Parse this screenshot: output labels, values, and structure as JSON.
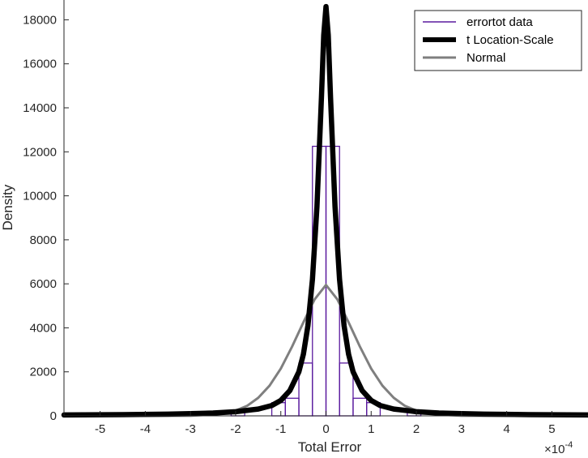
{
  "chart_data": {
    "type": "bar",
    "xlabel": "Total Error",
    "ylabel": "Density",
    "x_exponent_label": "×10",
    "x_exponent_power": "-4",
    "xlim": [
      -5.8,
      5.8
    ],
    "ylim": [
      0,
      18900
    ],
    "x_ticks": [
      -5,
      -4,
      -3,
      -2,
      -1,
      0,
      1,
      2,
      3,
      4,
      5
    ],
    "y_ticks": [
      0,
      2000,
      4000,
      6000,
      8000,
      10000,
      12000,
      14000,
      16000,
      18000
    ],
    "grid": false,
    "legend_position": "top-right",
    "legend": [
      {
        "label": "errortot data",
        "color": "#5a1a9e",
        "style": "thin"
      },
      {
        "label": "t Location-Scale",
        "color": "#000000",
        "style": "thick"
      },
      {
        "label": "Normal",
        "color": "#7f7f7f",
        "style": "medium"
      }
    ],
    "histogram": {
      "name": "errortot data",
      "color": "#5a1a9e",
      "bin_edges": [
        -3.6,
        -3.3,
        -2.1,
        -1.8,
        -1.2,
        -0.9,
        -0.6,
        -0.3,
        0,
        0.3,
        0.6,
        0.9,
        1.2,
        1.8,
        2.1,
        3.3,
        3.6
      ],
      "densities": [
        100,
        0,
        250,
        0,
        600,
        800,
        2400,
        12250,
        12250,
        2400,
        800,
        600,
        0,
        250,
        0,
        100
      ]
    },
    "series": [
      {
        "name": "t Location-Scale",
        "color": "#000000",
        "x": [
          -5.8,
          -4.5,
          -3.5,
          -3.0,
          -2.5,
          -2.0,
          -1.5,
          -1.2,
          -1.0,
          -0.8,
          -0.6,
          -0.5,
          -0.4,
          -0.3,
          -0.2,
          -0.1,
          -0.05,
          0,
          0.05,
          0.1,
          0.2,
          0.3,
          0.4,
          0.5,
          0.6,
          0.8,
          1.0,
          1.2,
          1.5,
          2.0,
          2.5,
          3.0,
          3.5,
          4.5,
          5.8
        ],
        "y": [
          40,
          55,
          80,
          100,
          130,
          190,
          310,
          470,
          700,
          1150,
          2000,
          2800,
          4100,
          6200,
          9500,
          14500,
          17300,
          18600,
          17300,
          14500,
          9500,
          6200,
          4100,
          2800,
          2000,
          1150,
          700,
          470,
          310,
          190,
          130,
          100,
          80,
          55,
          40
        ]
      },
      {
        "name": "Normal",
        "color": "#7f7f7f",
        "x": [
          -5.8,
          -3.0,
          -2.5,
          -2.0,
          -1.75,
          -1.5,
          -1.25,
          -1.0,
          -0.75,
          -0.5,
          -0.25,
          0,
          0.25,
          0.5,
          0.75,
          1.0,
          1.25,
          1.5,
          1.75,
          2.0,
          2.5,
          3.0,
          5.8
        ],
        "y": [
          0,
          5,
          60,
          240,
          450,
          820,
          1370,
          2150,
          3150,
          4250,
          5300,
          5950,
          5300,
          4250,
          3150,
          2150,
          1370,
          820,
          450,
          240,
          60,
          5,
          0
        ]
      }
    ]
  }
}
